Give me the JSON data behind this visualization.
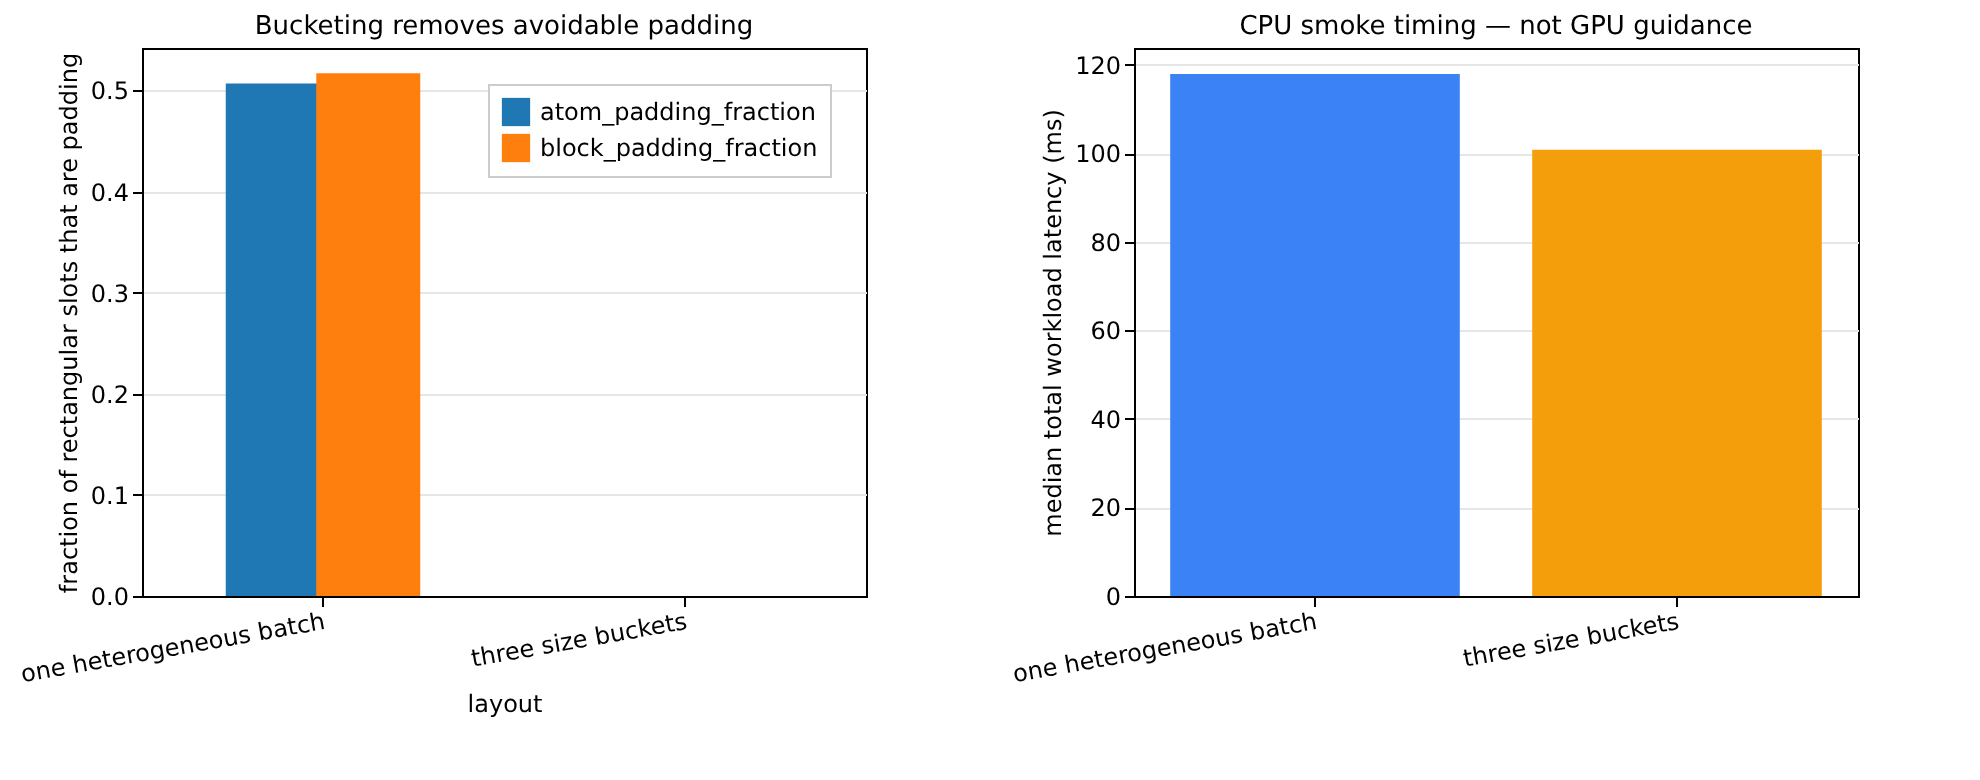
{
  "chart_data": [
    {
      "type": "bar",
      "title": "Bucketing removes avoidable padding",
      "xlabel": "layout",
      "ylabel": "fraction of rectangular slots that are padding",
      "categories": [
        "one heterogeneous batch",
        "three size buckets"
      ],
      "series": [
        {
          "name": "atom_padding_fraction",
          "color": "#1f77b4",
          "values": [
            0.507,
            0
          ]
        },
        {
          "name": "block_padding_fraction",
          "color": "#ff7f0e",
          "values": [
            0.517,
            0
          ]
        }
      ],
      "ylim": [
        0,
        0.542
      ],
      "yticks": [
        {
          "value": 0,
          "label": "0.0"
        },
        0.1,
        0.2,
        0.3,
        0.4,
        0.5
      ],
      "grid": "y",
      "legend": "top right"
    },
    {
      "type": "bar",
      "title": "CPU smoke timing — not GPU guidance",
      "ylabel": "median total workload latency (ms)",
      "categories": [
        "one heterogeneous batch",
        "three size buckets"
      ],
      "values": [
        117.9,
        100.8
      ],
      "colors": [
        "#3b82f6",
        "#f59e0b"
      ],
      "ylim": [
        0,
        123.8
      ],
      "yticks": [
        0,
        20,
        40,
        60,
        80,
        100,
        120
      ],
      "grid": "y",
      "legend": false
    }
  ]
}
